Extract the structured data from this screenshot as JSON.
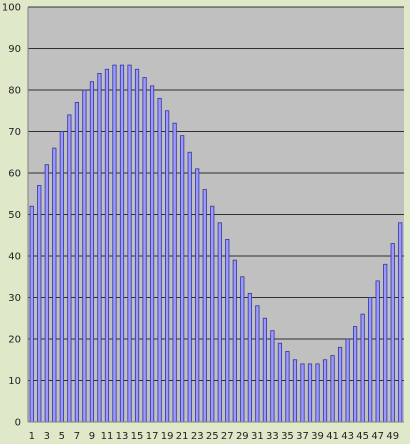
{
  "colors": {
    "page_background": "#dfe8c8",
    "plot_background": "#c0c0c0",
    "gridline": "#000000",
    "bar_fill": "#9999ff",
    "bar_stroke": "#333399"
  },
  "chart_data": {
    "type": "bar",
    "title": "",
    "xlabel": "",
    "ylabel": "",
    "ylim": [
      0,
      100
    ],
    "y_ticks": [
      0,
      10,
      20,
      30,
      40,
      50,
      60,
      70,
      80,
      90,
      100
    ],
    "grid": true,
    "legend": "none",
    "categories": [
      1,
      2,
      3,
      4,
      5,
      6,
      7,
      8,
      9,
      10,
      11,
      12,
      13,
      14,
      15,
      16,
      17,
      18,
      19,
      20,
      21,
      22,
      23,
      24,
      25,
      26,
      27,
      28,
      29,
      30,
      31,
      32,
      33,
      34,
      35,
      36,
      37,
      38,
      39,
      40,
      41,
      42,
      43,
      44,
      45,
      46,
      47,
      48,
      49,
      50
    ],
    "x_tick_labels": [
      "1",
      "3",
      "5",
      "7",
      "9",
      "11",
      "13",
      "15",
      "17",
      "19",
      "21",
      "23",
      "25",
      "27",
      "29",
      "31",
      "33",
      "35",
      "37",
      "39",
      "41",
      "43",
      "45",
      "47",
      "49"
    ],
    "values": [
      52,
      57,
      62,
      66,
      70,
      74,
      77,
      80,
      82,
      84,
      85,
      86,
      86,
      86,
      85,
      83,
      81,
      78,
      75,
      72,
      69,
      65,
      61,
      56,
      52,
      48,
      44,
      39,
      35,
      31,
      28,
      25,
      22,
      19,
      17,
      15,
      14,
      14,
      14,
      15,
      16,
      18,
      20,
      23,
      26,
      30,
      34,
      38,
      43,
      48
    ]
  }
}
